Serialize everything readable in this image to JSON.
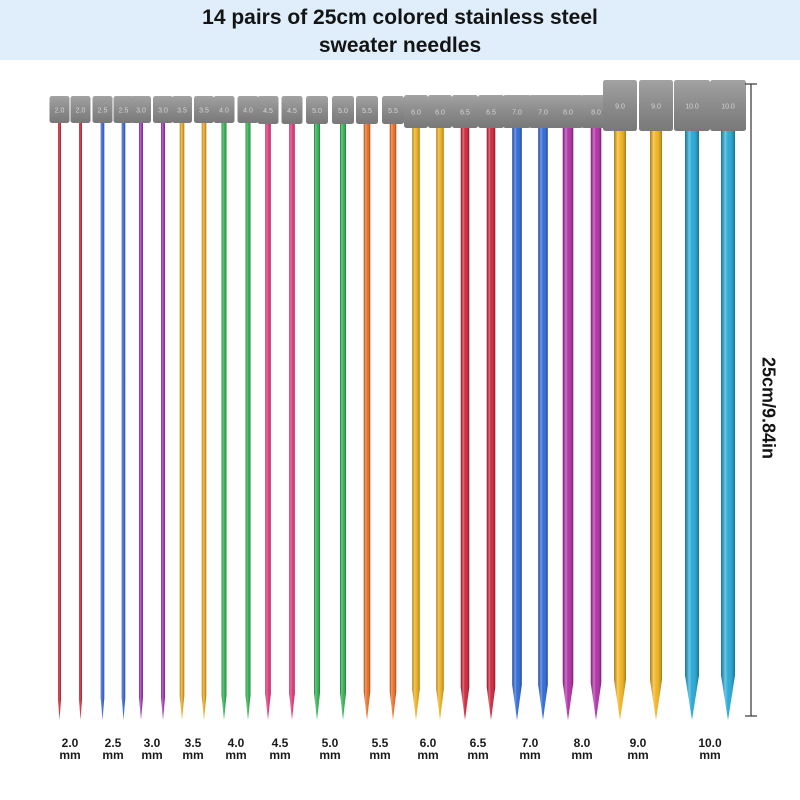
{
  "title": {
    "line1": "14 pairs of 25cm colored stainless steel",
    "line2": "sweater needles"
  },
  "length_label": "25cm/9.84in",
  "needles": [
    {
      "size": "2.0",
      "unit": "mm",
      "color": "#d8222e"
    },
    {
      "size": "2.5",
      "unit": "mm",
      "color": "#2f5fd6"
    },
    {
      "size": "3.0",
      "unit": "mm",
      "color": "#9b2fb3"
    },
    {
      "size": "3.5",
      "unit": "mm",
      "color": "#e8a418"
    },
    {
      "size": "4.0",
      "unit": "mm",
      "color": "#27b04a"
    },
    {
      "size": "4.5",
      "unit": "mm",
      "color": "#e5307a"
    },
    {
      "size": "5.0",
      "unit": "mm",
      "color": "#2bb24f"
    },
    {
      "size": "5.5",
      "unit": "mm",
      "color": "#ef6b1f"
    },
    {
      "size": "6.0",
      "unit": "mm",
      "color": "#f0ae14"
    },
    {
      "size": "6.5",
      "unit": "mm",
      "color": "#d11f35"
    },
    {
      "size": "7.0",
      "unit": "mm",
      "color": "#2a66d8"
    },
    {
      "size": "8.0",
      "unit": "mm",
      "color": "#b02aa6"
    },
    {
      "size": "9.0",
      "unit": "mm",
      "color": "#f2b318"
    },
    {
      "size": "10.0",
      "unit": "mm",
      "color": "#1fa7d6"
    }
  ],
  "cap_color": "#8e8e8e",
  "cap_text_color": "#d4d4d4"
}
